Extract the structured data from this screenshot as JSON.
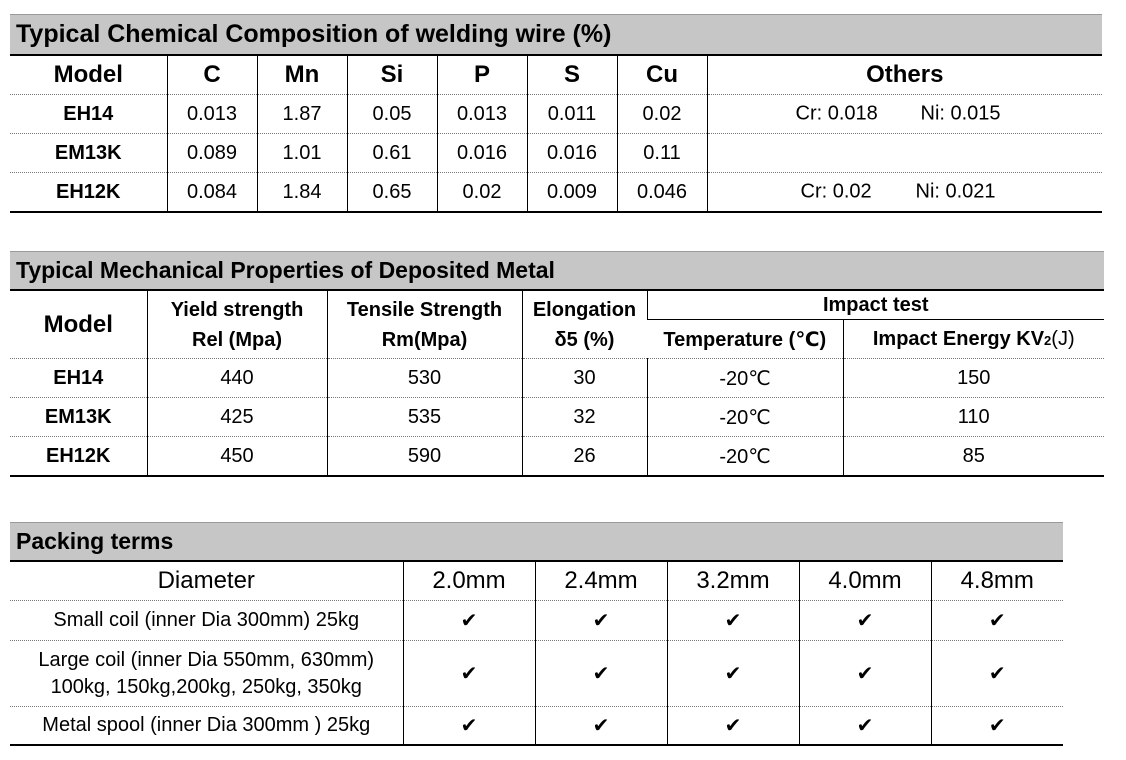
{
  "chemical": {
    "title": "Typical Chemical Composition of welding wire (%)",
    "headers": [
      "Model",
      "C",
      "Mn",
      "Si",
      "P",
      "S",
      "Cu",
      "Others"
    ],
    "rows": [
      {
        "model": "EH14",
        "c": "0.013",
        "mn": "1.87",
        "si": "0.05",
        "p": "0.013",
        "s": "0.011",
        "cu": "0.02",
        "cr": "Cr: 0.018",
        "ni": "Ni: 0.015"
      },
      {
        "model": "EM13K",
        "c": "0.089",
        "mn": "1.01",
        "si": "0.61",
        "p": "0.016",
        "s": "0.016",
        "cu": "0.11",
        "cr": "",
        "ni": ""
      },
      {
        "model": "EH12K",
        "c": "0.084",
        "mn": "1.84",
        "si": "0.65",
        "p": "0.02",
        "s": "0.009",
        "cu": "0.046",
        "cr": "Cr: 0.02",
        "ni": "Ni: 0.021"
      }
    ]
  },
  "mechanical": {
    "title": "Typical Mechanical Properties of Deposited Metal",
    "model_header": "Model",
    "yield_l1": "Yield strength",
    "yield_l2": "Rel (Mpa)",
    "tensile_l1": "Tensile Strength",
    "tensile_l2": "Rm(Mpa)",
    "elong_l1": "Elongation",
    "elong_l2": "δ5 (%)",
    "impact_title": "Impact test",
    "temp_header": "Temperature (℃)",
    "energy_header_a": "Impact Energy KV",
    "energy_header_sub": "2",
    "energy_header_b": "(J)",
    "rows": [
      {
        "model": "EH14",
        "yield": "440",
        "tensile": "530",
        "elong": "30",
        "temp": "-20℃",
        "energy": "150"
      },
      {
        "model": "EM13K",
        "yield": "425",
        "tensile": "535",
        "elong": "32",
        "temp": "-20℃",
        "energy": "110"
      },
      {
        "model": "EH12K",
        "yield": "450",
        "tensile": "590",
        "elong": "26",
        "temp": "-20℃",
        "energy": "85"
      }
    ]
  },
  "packing": {
    "title": "Packing terms",
    "diameter_label": "Diameter",
    "diameters": [
      "2.0mm",
      "2.4mm",
      "3.2mm",
      "4.0mm",
      "4.8mm"
    ],
    "check": "✔",
    "rows": [
      {
        "l1": "Small coil (inner Dia 300mm) 25kg",
        "l2": ""
      },
      {
        "l1": "Large coil (inner Dia 550mm, 630mm)",
        "l2": "100kg, 150kg,200kg, 250kg, 350kg"
      },
      {
        "l1": "Metal spool (inner Dia 300mm ) 25kg",
        "l2": ""
      }
    ]
  }
}
